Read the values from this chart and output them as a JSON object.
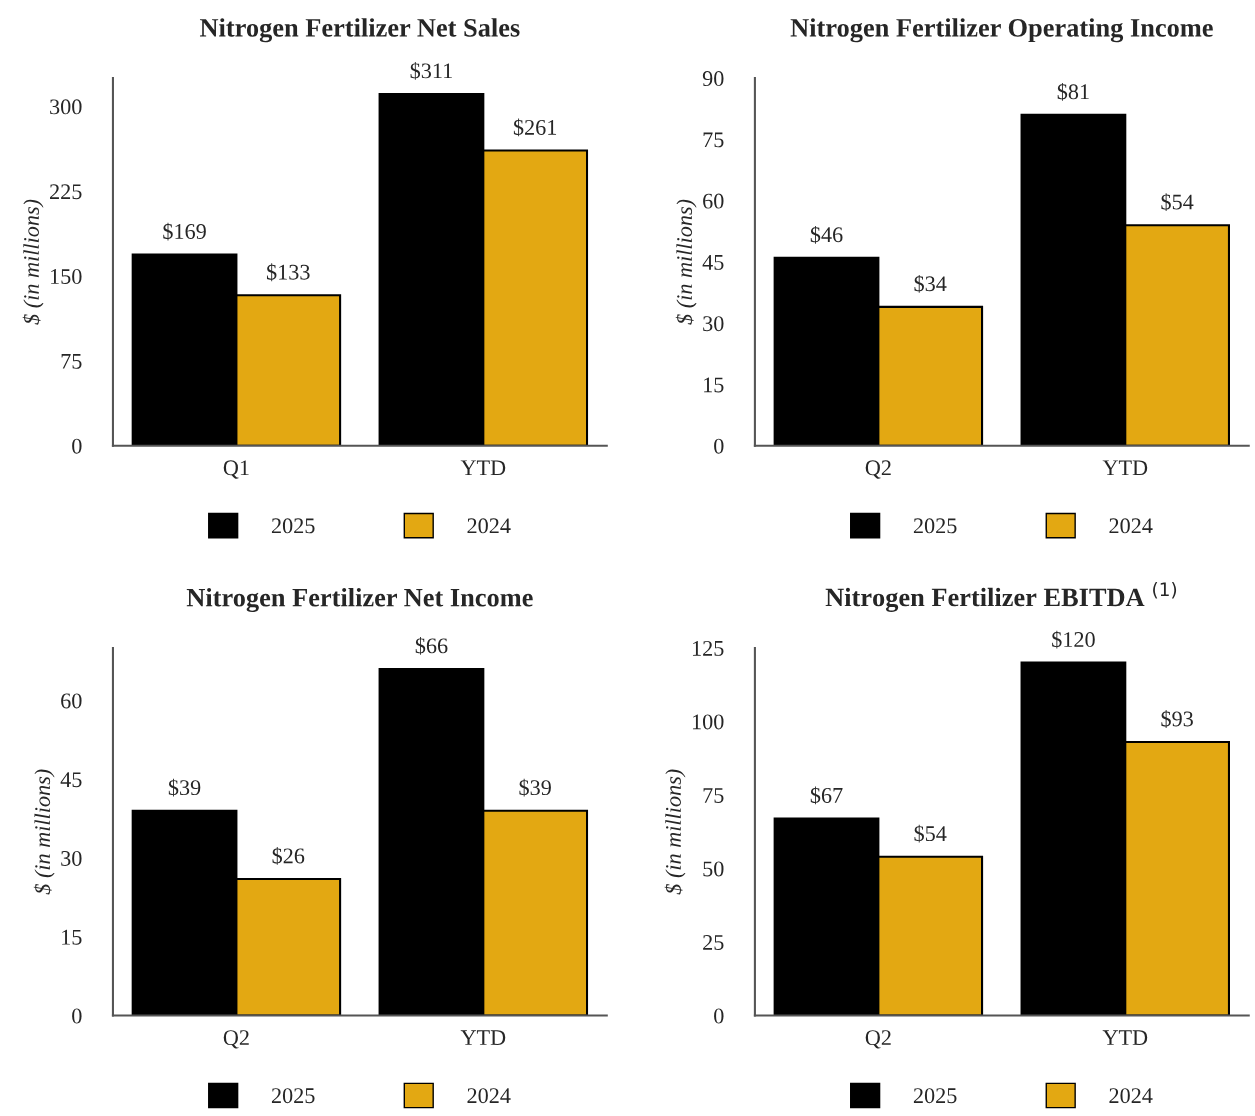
{
  "chart_data": [
    {
      "type": "bar",
      "title": "Nitrogen Fertilizer Net Sales",
      "ylabel": "$ (in millions)",
      "categories": [
        "Q1",
        "YTD"
      ],
      "series": [
        {
          "name": "2025",
          "color": "#000000",
          "values": [
            169,
            311
          ],
          "value_labels": [
            "$169",
            "$311"
          ]
        },
        {
          "name": "2024",
          "color": "#e3a812",
          "values": [
            133,
            261
          ],
          "value_labels": [
            "$133",
            "$261"
          ]
        }
      ],
      "ylim": [
        0,
        325
      ],
      "yticks": [
        0,
        75,
        150,
        225,
        300
      ],
      "legend": "bottom",
      "grid": false
    },
    {
      "type": "bar",
      "title": "Nitrogen Fertilizer Operating Income",
      "ylabel": "$ (in millions)",
      "categories": [
        "Q2",
        "YTD"
      ],
      "series": [
        {
          "name": "2025",
          "color": "#000000",
          "values": [
            46,
            81
          ],
          "value_labels": [
            "$46",
            "$81"
          ]
        },
        {
          "name": "2024",
          "color": "#e3a812",
          "values": [
            34,
            54
          ],
          "value_labels": [
            "$34",
            "$54"
          ]
        }
      ],
      "ylim": [
        0,
        90
      ],
      "yticks": [
        0,
        15,
        30,
        45,
        60,
        75,
        90
      ],
      "legend": "bottom",
      "grid": false
    },
    {
      "type": "bar",
      "title": "Nitrogen Fertilizer Net Income",
      "ylabel": "$ (in millions)",
      "categories": [
        "Q2",
        "YTD"
      ],
      "series": [
        {
          "name": "2025",
          "color": "#000000",
          "values": [
            39,
            66
          ],
          "value_labels": [
            "$39",
            "$66"
          ]
        },
        {
          "name": "2024",
          "color": "#e3a812",
          "values": [
            26,
            39
          ],
          "value_labels": [
            "$26",
            "$39"
          ]
        }
      ],
      "ylim": [
        0,
        70
      ],
      "yticks": [
        0,
        15,
        30,
        45,
        60
      ],
      "legend": "bottom",
      "grid": false
    },
    {
      "type": "bar",
      "title": "Nitrogen Fertilizer EBITDA $^{(1)}$",
      "ylabel": "$ (in millions)",
      "categories": [
        "Q2",
        "YTD"
      ],
      "series": [
        {
          "name": "2025",
          "color": "#000000",
          "values": [
            67,
            120
          ],
          "value_labels": [
            "$67",
            "$120"
          ]
        },
        {
          "name": "2024",
          "color": "#e3a812",
          "values": [
            54,
            93
          ],
          "value_labels": [
            "$54",
            "$93"
          ]
        }
      ],
      "ylim": [
        0,
        125
      ],
      "yticks": [
        0,
        25,
        50,
        75,
        100,
        125
      ],
      "legend": "bottom",
      "grid": false
    }
  ]
}
